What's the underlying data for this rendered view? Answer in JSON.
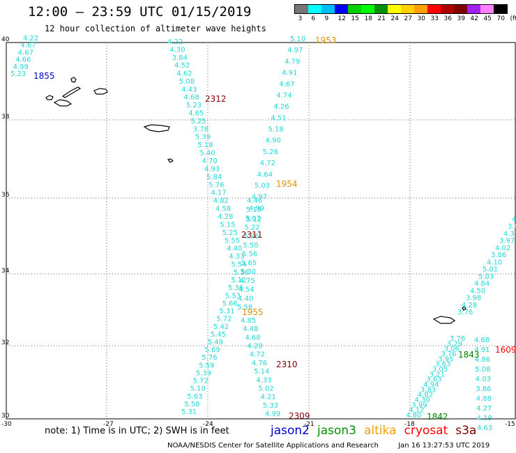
{
  "title": "12:00 – 23:59 UTC 01/15/2019",
  "subtitle": "12 hour collection of altimeter wave heights",
  "colorbar": {
    "colors": [
      "#777777",
      "#00ffff",
      "#00bfff",
      "#0000ff",
      "#00d000",
      "#00ff00",
      "#009000",
      "#ffff00",
      "#ffd000",
      "#ffa000",
      "#ff0000",
      "#b00000",
      "#800000",
      "#a020f0",
      "#ff80ff",
      "#000000"
    ],
    "labels": [
      "3",
      "6",
      "9",
      "12",
      "15",
      "18",
      "21",
      "24",
      "27",
      "30",
      "33",
      "36",
      "39",
      "42",
      "45",
      "70",
      "(ft)"
    ]
  },
  "axes": {
    "lat_labels": [
      "40",
      "38",
      "36",
      "34",
      "32",
      "30"
    ],
    "lon_labels": [
      "-30",
      "-27",
      "-24",
      "-21",
      "-18",
      "-15"
    ]
  },
  "tracks": [
    {
      "label": "1855",
      "label_color": "#0000c0",
      "values": [
        "4.22",
        "4.67",
        "4.67",
        "4.66",
        "4.99",
        "5.23"
      ]
    },
    {
      "label": "2312",
      "label_color": "#800000",
      "values": [
        "4.22",
        "4.30",
        "3.84",
        "4.52",
        "4.62",
        "5.08",
        "4.43",
        "4.68",
        "5.23",
        "4.65",
        "5.25",
        "3.78",
        "5.39",
        "5.18",
        "5.40",
        "4.70",
        "4.93",
        "5.84",
        "5.76",
        "4.17",
        "4.82",
        "4.58",
        "4.28",
        "5.15",
        "5.25",
        "5.55",
        "4.40",
        "4.33",
        "5.54",
        "5.36",
        "5.12",
        "5.36",
        "5.53",
        "5.66",
        "5.31",
        "5.72",
        "5.42",
        "5.45",
        "5.49",
        "5.69",
        "5.76",
        "5.59",
        "5.39",
        "5.72",
        "5.10",
        "5.63",
        "5.58",
        "5.31"
      ]
    },
    {
      "label": "1953",
      "label_color": "#e09000",
      "values": [
        "5.10",
        "4.97",
        "4.79",
        "4.91",
        "4.67",
        "4.74",
        "4.26",
        "4.51",
        "5.18",
        "4.90",
        "5.26",
        "4.72",
        "4.64",
        "5.03",
        "4.97",
        "4.99",
        "5.12"
      ]
    },
    {
      "label": "1954",
      "label_color": "#e09000",
      "values": []
    },
    {
      "label": "2311",
      "label_color": "#800000",
      "values": [
        "4.46",
        "5.19",
        "5.07",
        "5.22",
        "5.26",
        "5.50",
        "5.56",
        "5.65",
        "5.30",
        "4.75",
        "4.54",
        "4.40",
        "5.58"
      ]
    },
    {
      "label": "1955",
      "label_color": "#e09000",
      "values": [
        "4.85",
        "4.48",
        "4.68",
        "4.20",
        "4.72",
        "4.76",
        "5.14",
        "4.33",
        "5.02",
        "4.21",
        "5.33",
        "4.99"
      ]
    },
    {
      "label": "2310",
      "label_color": "#800000",
      "values": []
    },
    {
      "label": "2309",
      "label_color": "#800000",
      "values": []
    },
    {
      "label": "1843",
      "label_color": "#008000",
      "values": [
        "4.68",
        "4.91",
        "4.86",
        "5.08",
        "4.03",
        "3.86",
        "4.88",
        "4.27",
        "4.19",
        "4.63"
      ]
    },
    {
      "label": "1842",
      "label_color": "#008000",
      "values": [
        "3.76",
        "3.29",
        "3.06",
        "3.76",
        "3.95",
        "3.63",
        "3.05",
        "3.21",
        "3.63",
        "4.94",
        "3.83",
        "4.82",
        "4.30",
        "3.99",
        "4.12",
        "4.80"
      ]
    },
    {
      "label": "1609",
      "label_color": "#ff0000",
      "values": [
        "4.8",
        "3.82",
        "4.35",
        "3.97",
        "4.02",
        "3.86",
        "4.10",
        "5.01",
        "5.03",
        "4.84",
        "4.50",
        "3.98",
        "4.28",
        "3.76"
      ]
    }
  ],
  "note": "note: 1) Time is in UTC; 2) SWH is in feet",
  "legend": [
    {
      "name": "jason2",
      "color": "#0000d0"
    },
    {
      "name": "jason3",
      "color": "#009000"
    },
    {
      "name": "altika",
      "color": "#f0a000"
    },
    {
      "name": "cryosat",
      "color": "#ff0000"
    },
    {
      "name": "s3a",
      "color": "#800000"
    }
  ],
  "footer": {
    "credit": "NOAA/NESDIS Center for Satellite Applications and Research",
    "timestamp": "Jan 16 13:27:53 UTC 2019"
  }
}
